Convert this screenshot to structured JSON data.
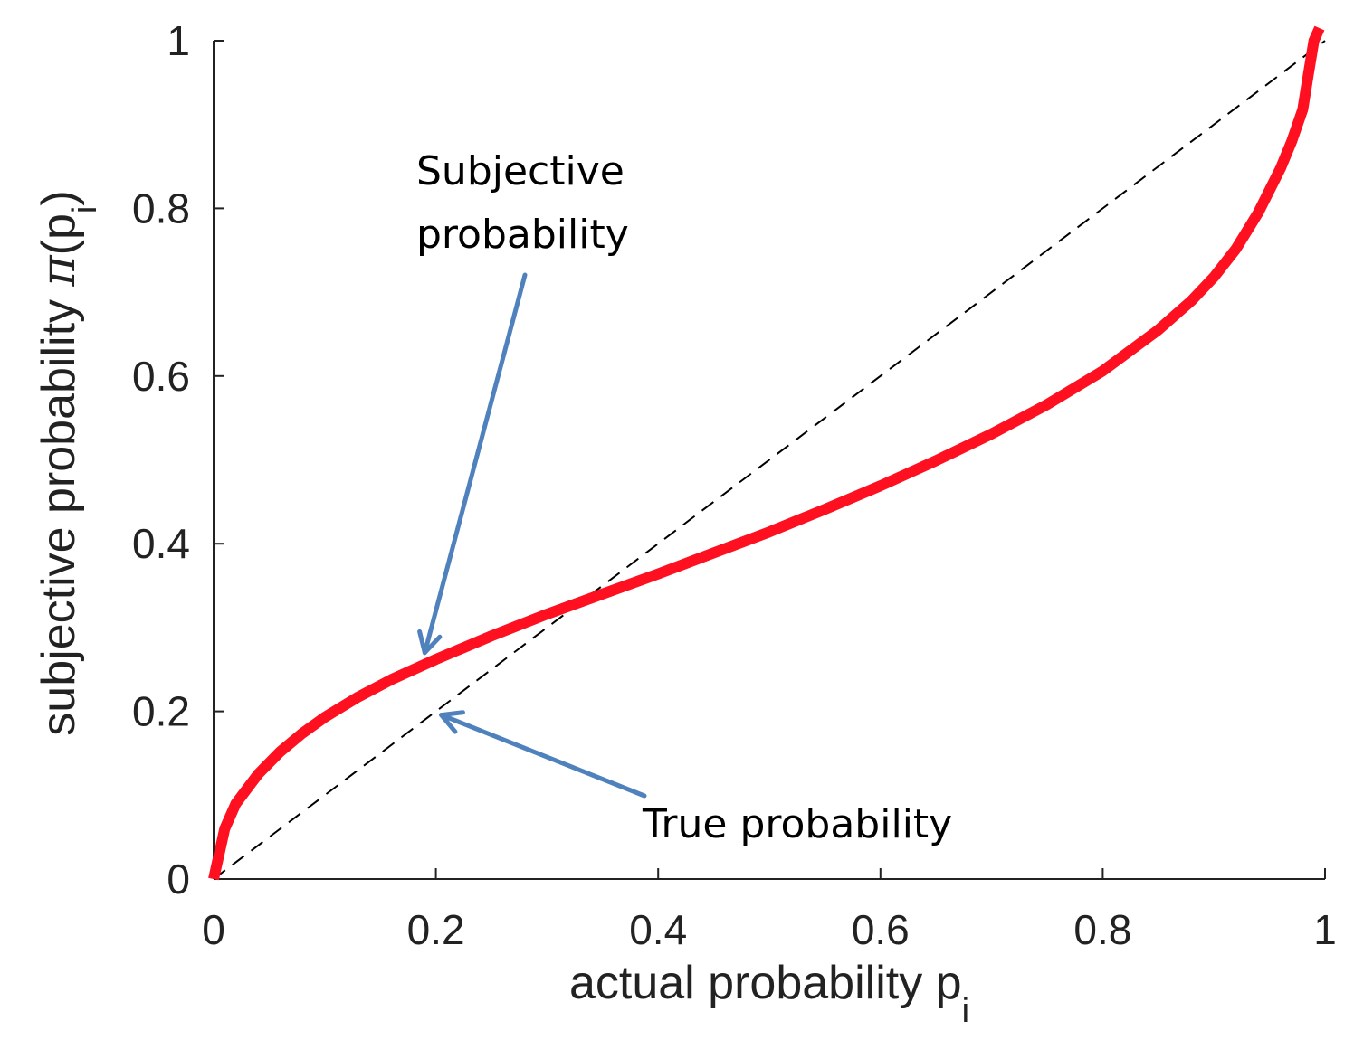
{
  "chart_data": {
    "type": "line",
    "xlabel": "actual probability p",
    "xlabel_sub": "i",
    "ylabel_prefix": "subjective probability ",
    "ylabel_symbol": "π",
    "ylabel_open": "(p",
    "ylabel_sub": "i",
    "ylabel_close": ")",
    "xlim": [
      0,
      1
    ],
    "ylim": [
      0,
      1
    ],
    "xticks": [
      "0",
      "0.2",
      "0.4",
      "0.6",
      "0.8",
      "1"
    ],
    "yticks": [
      "0",
      "0.2",
      "0.4",
      "0.6",
      "0.8",
      "1"
    ],
    "grid": false,
    "series": [
      {
        "style": "solid",
        "color": "#ff1020",
        "x": [
          0,
          0.01,
          0.02,
          0.04,
          0.06,
          0.08,
          0.1,
          0.13,
          0.16,
          0.2,
          0.25,
          0.3,
          0.35,
          0.4,
          0.45,
          0.5,
          0.55,
          0.6,
          0.65,
          0.7,
          0.75,
          0.8,
          0.85,
          0.88,
          0.9,
          0.92,
          0.94,
          0.96,
          0.97,
          0.98,
          0.985,
          0.99,
          0.995
        ],
        "y": [
          0,
          0.06,
          0.09,
          0.125,
          0.152,
          0.174,
          0.193,
          0.217,
          0.238,
          0.262,
          0.29,
          0.316,
          0.34,
          0.364,
          0.389,
          0.414,
          0.441,
          0.469,
          0.499,
          0.531,
          0.566,
          0.606,
          0.655,
          0.69,
          0.718,
          0.752,
          0.795,
          0.848,
          0.88,
          0.918,
          0.96,
          1.0,
          1.015
        ]
      },
      {
        "style": "dashed",
        "color": "#000000",
        "x": [
          0,
          1
        ],
        "y": [
          0,
          1
        ]
      }
    ],
    "annotations": [
      {
        "lines": [
          "Subjective",
          "probability"
        ],
        "arrow_to": [
          0.19,
          0.27
        ]
      },
      {
        "lines": [
          "True probability"
        ],
        "arrow_to": [
          0.2,
          0.2
        ]
      }
    ],
    "colors": {
      "arrow": "#4f81bd",
      "axis": "#222222"
    }
  }
}
